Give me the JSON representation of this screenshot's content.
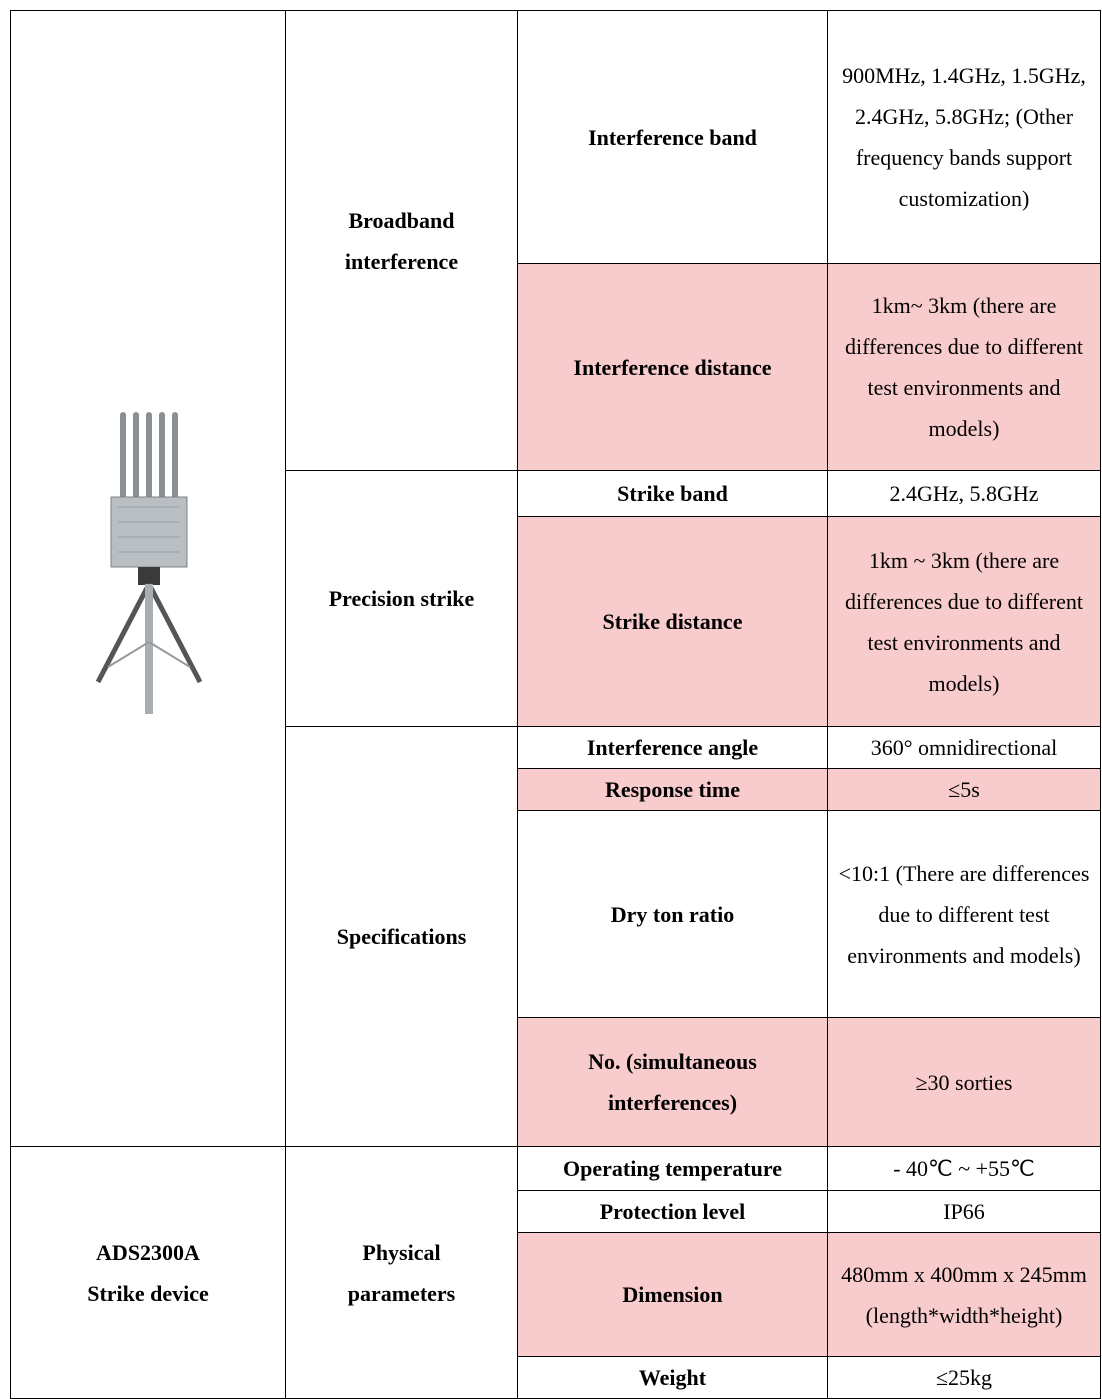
{
  "table": {
    "device": {
      "lines": [
        "ADS2300A",
        "Strike device"
      ]
    },
    "groups": [
      {
        "lines": [
          "Broadband",
          "interference"
        ]
      },
      {
        "lines": [
          "Precision strike"
        ]
      },
      {
        "lines": [
          "Specifications"
        ]
      },
      {
        "lines": [
          "Physical",
          "parameters"
        ]
      }
    ],
    "rows": [
      [
        "Interference band",
        "900MHz, 1.4GHz, 1.5GHz, 2.4GHz, 5.8GHz; (Other frequency bands support customization)"
      ],
      [
        "Interference distance",
        "1km~ 3km (there are differences due to different test environments and models)"
      ],
      [
        "Strike band",
        "2.4GHz, 5.8GHz"
      ],
      [
        "Strike distance",
        "1km ~ 3km (there are differences due to different test environments and models)"
      ],
      [
        "Interference angle",
        "360° omnidirectional"
      ],
      [
        "Response time",
        "≤5s"
      ],
      [
        "Dry ton ratio",
        "<10:1 (There are differences due to different test environments and models)"
      ],
      [
        "No. (simultaneous interferences)",
        "≥30 sorties"
      ],
      [
        "Operating temperature",
        "- 40℃ ~ +55℃"
      ],
      [
        "Protection level",
        "IP66"
      ],
      [
        "Dimension",
        "480mm x 400mm x 245mm (length*width*height)"
      ],
      [
        "Weight",
        "≤25kg"
      ]
    ]
  }
}
